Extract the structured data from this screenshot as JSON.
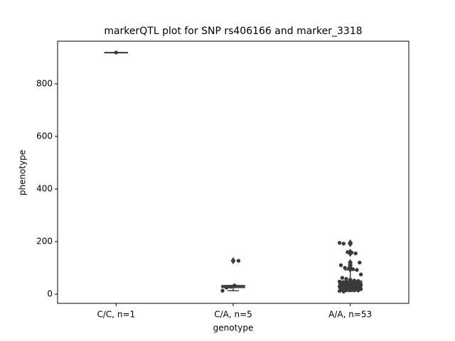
{
  "chart_data": {
    "type": "box",
    "title": "markerQTL plot for SNP rs406166 and marker_3318",
    "x_label": "genotype",
    "y_label": "phenotype",
    "categories": [
      "C/C, n=1",
      "C/A, n=5",
      "A/A, n=53"
    ],
    "ylim": [
      -35,
      962
    ],
    "yticks": [
      0,
      200,
      400,
      600,
      800
    ],
    "boxes": [
      {
        "color": "#4c72b0",
        "q1": 919,
        "median": 919,
        "q3": 919,
        "whisker_low": 919,
        "whisker_high": 919,
        "outliers": []
      },
      {
        "color": "#8172b3",
        "q1": 25,
        "median": 28,
        "q3": 33,
        "whisker_low": 13,
        "whisker_high": 33,
        "outliers": [
          127
        ]
      },
      {
        "color": "#8172b3",
        "q1": 22,
        "median": 34,
        "q3": 50,
        "whisker_low": 10,
        "whisker_high": 92,
        "outliers": [
          195,
          192,
          160,
          158,
          155,
          120,
          110,
          100,
          98,
          95
        ]
      }
    ],
    "point_color": "#3a3a3a",
    "points": [
      [
        919
      ],
      [
        13,
        25,
        28,
        33,
        127
      ],
      [
        195,
        192,
        160,
        158,
        155,
        120,
        110,
        100,
        98,
        95,
        92,
        75,
        62,
        58,
        55,
        52,
        50,
        48,
        46,
        45,
        44,
        42,
        40,
        40,
        38,
        37,
        36,
        35,
        35,
        34,
        33,
        32,
        31,
        30,
        29,
        28,
        27,
        26,
        25,
        24,
        23,
        22,
        21,
        20,
        20,
        19,
        18,
        17,
        16,
        15,
        14,
        12,
        10
      ]
    ]
  }
}
